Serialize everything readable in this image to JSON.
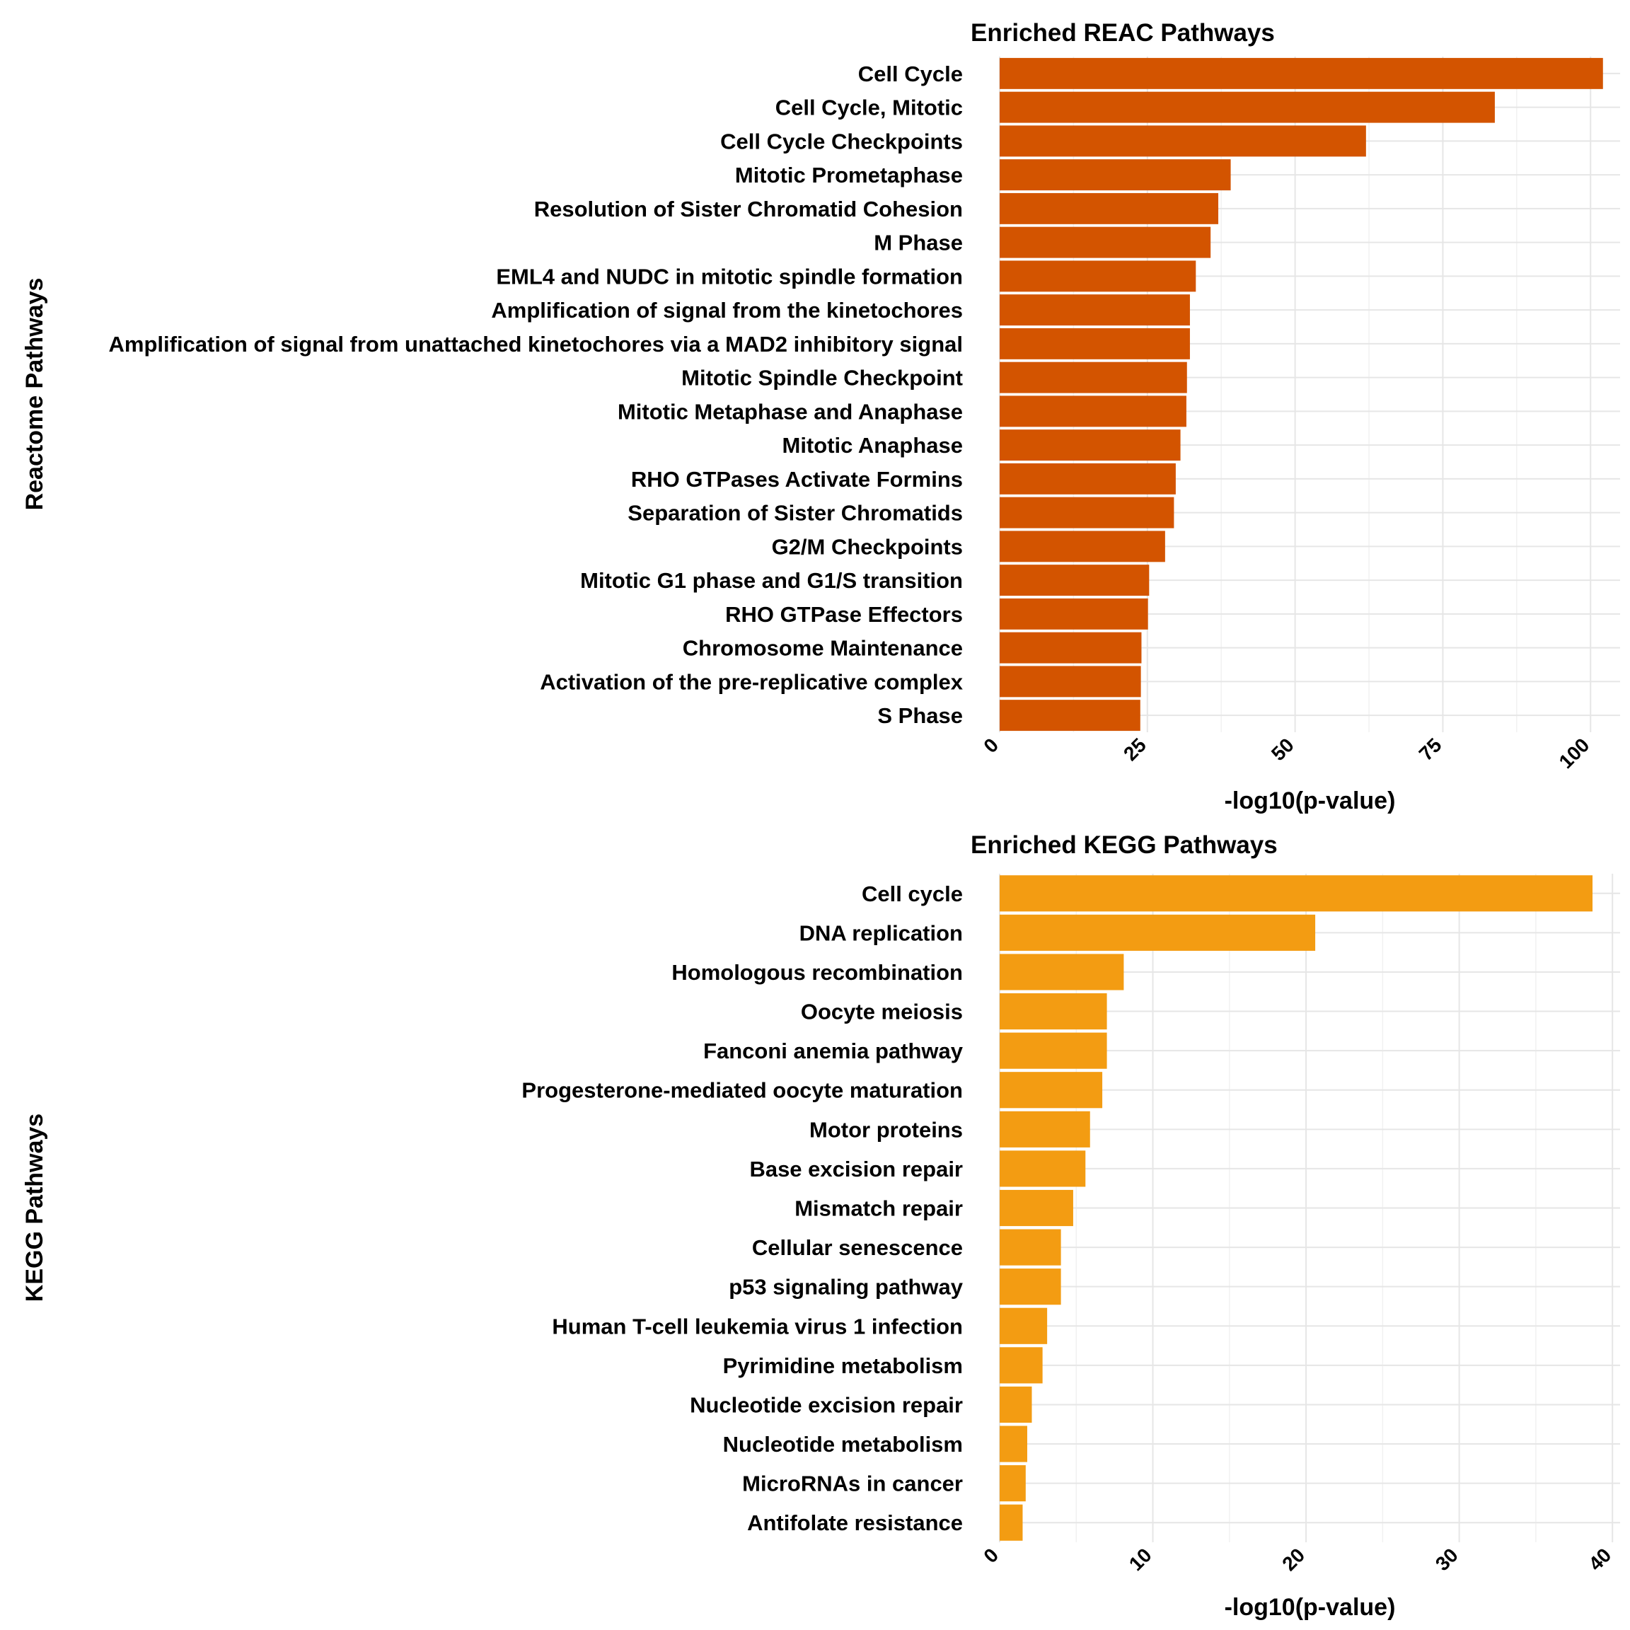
{
  "chart_data": [
    {
      "type": "bar",
      "orientation": "horizontal",
      "title": "Enriched REAC Pathways",
      "xlabel": "-log10(p-value)",
      "ylabel": "Reactome Pathways",
      "color": "#d35400",
      "xlim": [
        0,
        105
      ],
      "xticks": [
        0,
        25,
        50,
        75,
        100
      ],
      "grid": true,
      "categories": [
        "Cell Cycle",
        "Cell Cycle, Mitotic",
        "Cell Cycle Checkpoints",
        "Mitotic Prometaphase",
        "Resolution of Sister Chromatid Cohesion",
        "M Phase",
        "EML4 and NUDC in mitotic spindle formation",
        "Amplification of signal from the kinetochores",
        "Amplification  of signal from unattached  kinetochores via a MAD2  inhibitory signal",
        "Mitotic Spindle Checkpoint",
        "Mitotic Metaphase and Anaphase",
        "Mitotic Anaphase",
        "RHO GTPases Activate Formins",
        "Separation of Sister Chromatids",
        "G2/M Checkpoints",
        "Mitotic G1 phase and G1/S transition",
        "RHO GTPase Effectors",
        "Chromosome Maintenance",
        "Activation of the pre-replicative complex",
        "S Phase"
      ],
      "values": [
        102.1,
        83.8,
        62.0,
        39.1,
        37.0,
        35.7,
        33.2,
        32.2,
        32.2,
        31.7,
        31.6,
        30.6,
        29.8,
        29.5,
        28.0,
        25.3,
        25.1,
        24.0,
        23.9,
        23.8
      ]
    },
    {
      "type": "bar",
      "orientation": "horizontal",
      "title": "Enriched KEGG Pathways",
      "xlabel": "-log10(p-value)",
      "ylabel": "KEGG Pathways",
      "color": "#f39c12",
      "xlim": [
        0,
        40.5
      ],
      "xticks": [
        0,
        10,
        20,
        30,
        40
      ],
      "grid": true,
      "categories": [
        "Cell cycle",
        "DNA replication",
        "Homologous recombination",
        "Oocyte meiosis",
        "Fanconi anemia pathway",
        "Progesterone-mediated oocyte maturation",
        "Motor proteins",
        "Base excision repair",
        "Mismatch repair",
        "Cellular senescence",
        "p53 signaling pathway",
        "Human T-cell leukemia virus 1 infection",
        "Pyrimidine metabolism",
        "Nucleotide excision repair",
        "Nucleotide metabolism",
        "MicroRNAs in cancer",
        "Antifolate resistance"
      ],
      "values": [
        38.7,
        20.6,
        8.1,
        7.0,
        7.0,
        6.7,
        5.9,
        5.6,
        4.8,
        4.0,
        4.0,
        3.1,
        2.8,
        2.1,
        1.8,
        1.7,
        1.5
      ]
    }
  ]
}
